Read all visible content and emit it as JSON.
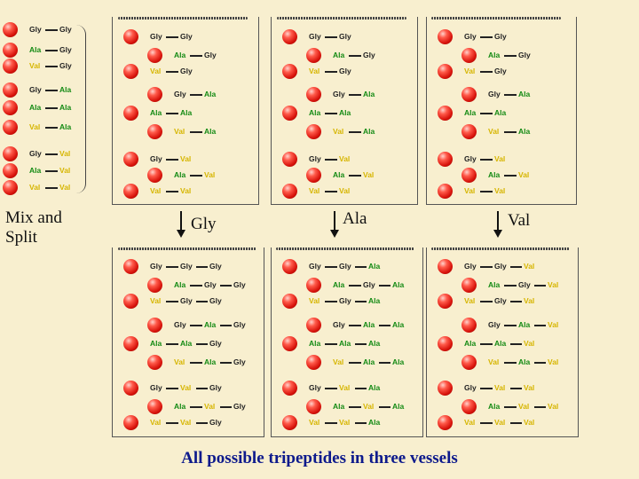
{
  "mix_label": "Mix and Split",
  "vessel_labels": [
    "Gly",
    "Ala",
    "Val"
  ],
  "footer": "All possible tripeptides in three vessels",
  "left_column": [
    [
      "Gly",
      "Gly"
    ],
    [
      "Ala",
      "Gly"
    ],
    [
      "Val",
      "Gly"
    ],
    [
      "Gly",
      "Ala"
    ],
    [
      "Ala",
      "Ala"
    ],
    [
      "Val",
      "Ala"
    ],
    [
      "Gly",
      "Val"
    ],
    [
      "Ala",
      "Val"
    ],
    [
      "Val",
      "Val"
    ]
  ],
  "top_vessel": [
    [
      "Gly",
      "Gly"
    ],
    [
      "Ala",
      "Gly"
    ],
    [
      "Val",
      "Gly"
    ],
    [
      "Gly",
      "Ala"
    ],
    [
      "Ala",
      "Ala"
    ],
    [
      "Val",
      "Ala"
    ],
    [
      "Gly",
      "Val"
    ],
    [
      "Ala",
      "Val"
    ],
    [
      "Val",
      "Val"
    ]
  ],
  "bottom_vessels": [
    [
      [
        "Gly",
        "Gly",
        "Gly"
      ],
      [
        "Ala",
        "Gly",
        "Gly"
      ],
      [
        "Val",
        "Gly",
        "Gly"
      ],
      [
        "Gly",
        "Ala",
        "Gly"
      ],
      [
        "Ala",
        "Ala",
        "Gly"
      ],
      [
        "Val",
        "Ala",
        "Gly"
      ],
      [
        "Gly",
        "Val",
        "Gly"
      ],
      [
        "Ala",
        "Val",
        "Gly"
      ],
      [
        "Val",
        "Val",
        "Gly"
      ]
    ],
    [
      [
        "Gly",
        "Gly",
        "Ala"
      ],
      [
        "Ala",
        "Gly",
        "Ala"
      ],
      [
        "Val",
        "Gly",
        "Ala"
      ],
      [
        "Gly",
        "Ala",
        "Ala"
      ],
      [
        "Ala",
        "Ala",
        "Ala"
      ],
      [
        "Val",
        "Ala",
        "Ala"
      ],
      [
        "Gly",
        "Val",
        "Ala"
      ],
      [
        "Ala",
        "Val",
        "Ala"
      ],
      [
        "Val",
        "Val",
        "Ala"
      ]
    ],
    [
      [
        "Gly",
        "Gly",
        "Val"
      ],
      [
        "Ala",
        "Gly",
        "Val"
      ],
      [
        "Val",
        "Gly",
        "Val"
      ],
      [
        "Gly",
        "Ala",
        "Val"
      ],
      [
        "Ala",
        "Ala",
        "Val"
      ],
      [
        "Val",
        "Ala",
        "Val"
      ],
      [
        "Gly",
        "Val",
        "Val"
      ],
      [
        "Ala",
        "Val",
        "Val"
      ],
      [
        "Val",
        "Val",
        "Val"
      ]
    ]
  ],
  "colors": {
    "background": "#f8efcf",
    "bead": "#d8140c",
    "gly": "#222222",
    "ala": "#138a13",
    "val": "#d6b500",
    "footer": "#0d1a8c"
  }
}
